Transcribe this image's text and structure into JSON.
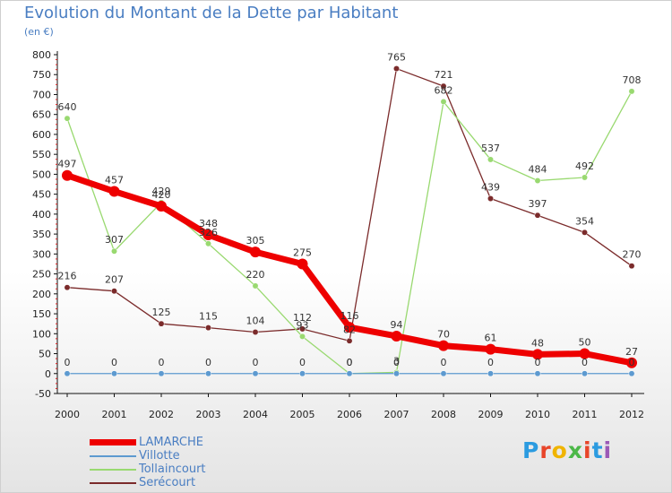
{
  "header": {
    "title": "Evolution du Montant de la Dette par Habitant",
    "unit": "(en €)"
  },
  "brand": {
    "text": "Proxiti",
    "letter_colors": [
      "#2b9be0",
      "#e8452a",
      "#f0b400",
      "#4cb848",
      "#e8452a",
      "#2b9be0",
      "#9b59b6"
    ]
  },
  "chart_data": {
    "type": "line",
    "title": "Evolution du Montant de la Dette par Habitant",
    "subtitle": "(en €)",
    "x": [
      "2000",
      "2001",
      "2002",
      "2003",
      "2004",
      "2005",
      "2006",
      "2007",
      "2008",
      "2009",
      "2010",
      "2011",
      "2012"
    ],
    "ylim": [
      -50,
      800
    ],
    "yticks": [
      -50,
      0,
      50,
      100,
      150,
      200,
      250,
      300,
      350,
      400,
      450,
      500,
      550,
      600,
      650,
      700,
      750,
      800
    ],
    "grid": false,
    "legend": "bottom-left",
    "series": [
      {
        "name": "LAMARCHE",
        "color": "#ee0000",
        "values": [
          497,
          457,
          420,
          348,
          305,
          275,
          116,
          94,
          70,
          61,
          48,
          50,
          27
        ],
        "labels": [
          "497",
          "457",
          "420",
          "348",
          "305",
          "275",
          "116",
          "94",
          "70",
          "61",
          "48",
          "50",
          "27"
        ]
      },
      {
        "name": "Villotte",
        "color": "#5d9ad0",
        "values": [
          0,
          0,
          0,
          0,
          0,
          0,
          0,
          0,
          0,
          0,
          0,
          0,
          0
        ],
        "labels": [
          "0",
          "0",
          "0",
          "0",
          "0",
          "0",
          "0",
          "0",
          "0",
          "0",
          "0",
          "0",
          "0"
        ]
      },
      {
        "name": "Tollaincourt",
        "color": "#99d970",
        "values": [
          640,
          307,
          429,
          326,
          220,
          93,
          0,
          3,
          682,
          537,
          484,
          492,
          708
        ],
        "labels": [
          "640",
          "307",
          "429",
          "326",
          "220",
          "93",
          "0",
          "3",
          "682",
          "537",
          "484",
          "492",
          "708"
        ]
      },
      {
        "name": "Serécourt",
        "color": "#7b2b2b",
        "values": [
          216,
          207,
          125,
          115,
          104,
          112,
          82,
          765,
          721,
          439,
          397,
          354,
          270
        ],
        "labels": [
          "216",
          "207",
          "125",
          "115",
          "104",
          "112",
          "82",
          "765",
          "721",
          "439",
          "397",
          "354",
          "270"
        ]
      }
    ]
  }
}
